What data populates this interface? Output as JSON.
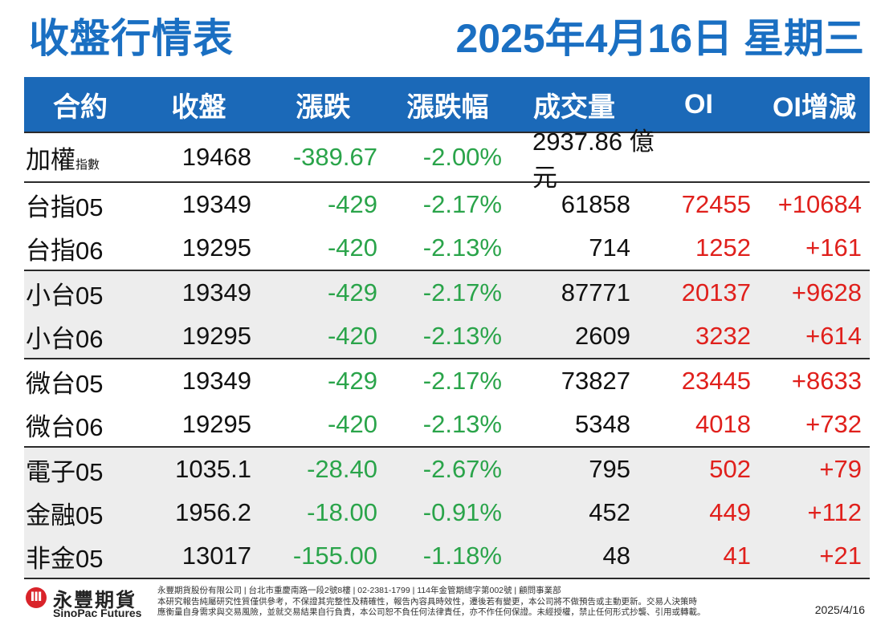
{
  "header": {
    "title": "收盤行情表",
    "date": "2025年4月16日 星期三"
  },
  "columns": [
    "合約",
    "收盤",
    "漲跌",
    "漲跌幅",
    "成交量",
    "OI",
    "OI增減"
  ],
  "taiex": {
    "name": "加權",
    "sub": "指數",
    "close": "19468",
    "change": "-389.67",
    "pct": "-2.00%",
    "volume": "2937.86 億元"
  },
  "groups": [
    {
      "shade": false,
      "rows": [
        {
          "name": "台指05",
          "close": "19349",
          "change": "-429",
          "pct": "-2.17%",
          "volume": "61858",
          "oi": "72455",
          "oi_change": "+10684"
        },
        {
          "name": "台指06",
          "close": "19295",
          "change": "-420",
          "pct": "-2.13%",
          "volume": "714",
          "oi": "1252",
          "oi_change": "+161"
        }
      ]
    },
    {
      "shade": true,
      "rows": [
        {
          "name": "小台05",
          "close": "19349",
          "change": "-429",
          "pct": "-2.17%",
          "volume": "87771",
          "oi": "20137",
          "oi_change": "+9628"
        },
        {
          "name": "小台06",
          "close": "19295",
          "change": "-420",
          "pct": "-2.13%",
          "volume": "2609",
          "oi": "3232",
          "oi_change": "+614"
        }
      ]
    },
    {
      "shade": false,
      "rows": [
        {
          "name": "微台05",
          "close": "19349",
          "change": "-429",
          "pct": "-2.17%",
          "volume": "73827",
          "oi": "23445",
          "oi_change": "+8633"
        },
        {
          "name": "微台06",
          "close": "19295",
          "change": "-420",
          "pct": "-2.13%",
          "volume": "5348",
          "oi": "4018",
          "oi_change": "+732"
        }
      ]
    },
    {
      "shade": true,
      "rows": [
        {
          "name": "電子05",
          "close": "1035.1",
          "change": "-28.40",
          "pct": "-2.67%",
          "volume": "795",
          "oi": "502",
          "oi_change": "+79"
        },
        {
          "name": "金融05",
          "close": "1956.2",
          "change": "-18.00",
          "pct": "-0.91%",
          "volume": "452",
          "oi": "449",
          "oi_change": "+112"
        },
        {
          "name": "非金05",
          "close": "13017",
          "change": "-155.00",
          "pct": "-1.18%",
          "volume": "48",
          "oi": "41",
          "oi_change": "+21"
        }
      ]
    }
  ],
  "colors": {
    "brand_blue": "#1b69b8",
    "down_green": "#2aa44a",
    "up_red": "#e0201c",
    "shade": "#ededed"
  },
  "footer": {
    "logo_icon": "sinopac-logo-icon",
    "logo_cn": "永豐期貨",
    "logo_en": "SinoPac Futures",
    "disclaimer": [
      "永豐期貨股份有限公司 | 台北市重慶南路一段2號8樓 | 02-2381-1799 | 114年金管期總字第002號 | 顧問事業部",
      "本研究報告純屬研究性質僅供參考，不保證其完整性及精確性，報告內容具時效性，遷後若有變更，本公司將不做預告或主動更新。交易人決策時",
      "應衡量自身需求與交易風險，並就交易結果自行負責，本公司恕不負任何法律責任，亦不作任何保證。未經授權，禁止任何形式抄襲、引用或轉載。"
    ],
    "date": "2025/4/16"
  }
}
